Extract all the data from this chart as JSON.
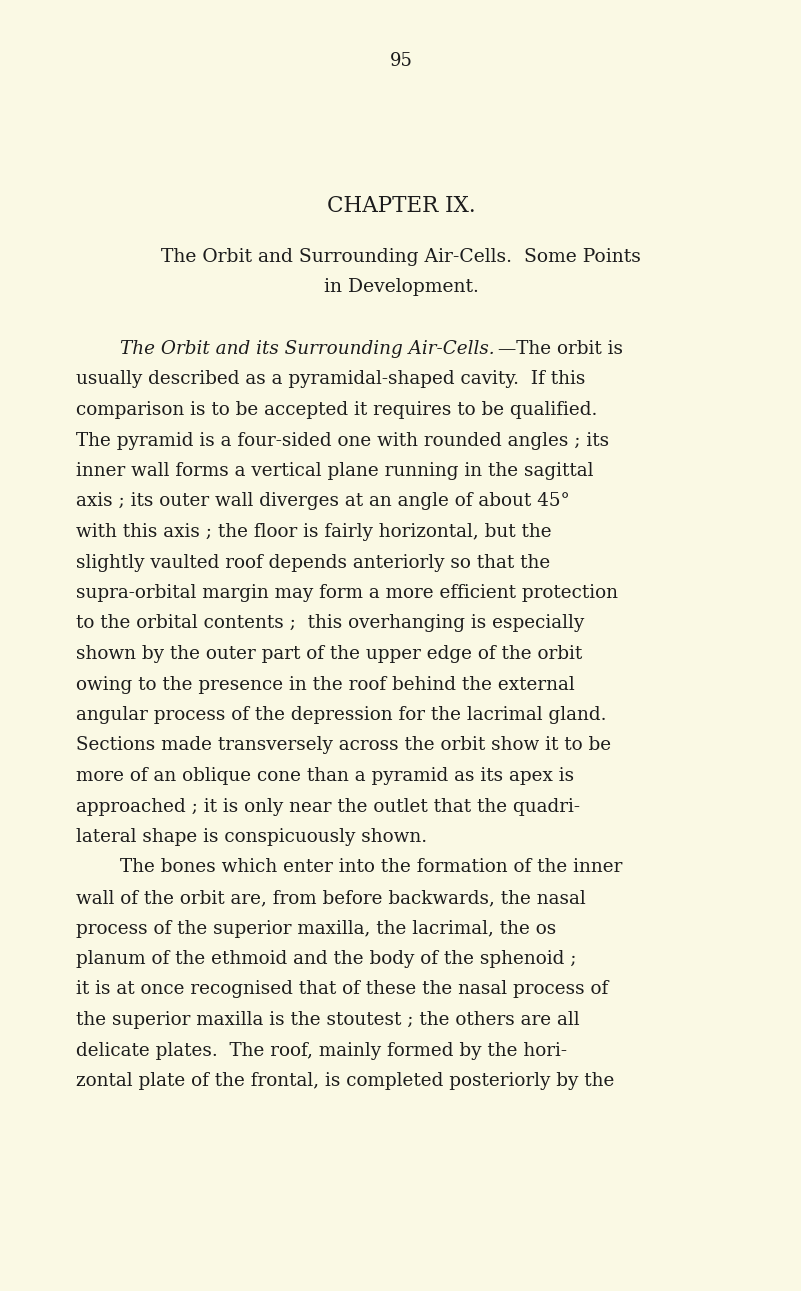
{
  "background_color": "#faf9e4",
  "page_number": "95",
  "text_color": "#1c1c1c",
  "chapter_title": "CHAPTER IX.",
  "subtitle_line1": "The Orbit and Surrounding Air-Cells.  Some Points",
  "subtitle_line2": "in Development.",
  "body_lines": [
    {
      "indent": true,
      "italic_prefix": "The Orbit and its Surrounding Air-Cells.",
      "normal_suffix": "—The orbit is"
    },
    {
      "indent": false,
      "text": "usually described as a pyramidal-shaped cavity.  If this"
    },
    {
      "indent": false,
      "text": "comparison is to be accepted it requires to be qualified."
    },
    {
      "indent": false,
      "text": "The pyramid is a four-sided one with rounded angles ; its"
    },
    {
      "indent": false,
      "text": "inner wall forms a vertical plane running in the sagittal"
    },
    {
      "indent": false,
      "text": "axis ; its outer wall diverges at an angle of about 45°"
    },
    {
      "indent": false,
      "text": "with this axis ; the floor is fairly horizontal, but the"
    },
    {
      "indent": false,
      "text": "slightly vaulted roof depends anteriorly so that the"
    },
    {
      "indent": false,
      "text": "supra-orbital margin may form a more efficient protection"
    },
    {
      "indent": false,
      "text": "to the orbital contents ;  this overhanging is especially"
    },
    {
      "indent": false,
      "text": "shown by the outer part of the upper edge of the orbit"
    },
    {
      "indent": false,
      "text": "owing to the presence in the roof behind the external"
    },
    {
      "indent": false,
      "text": "angular process of the depression for the lacrimal gland."
    },
    {
      "indent": false,
      "text": "Sections made transversely across the orbit show it to be"
    },
    {
      "indent": false,
      "text": "more of an oblique cone than a pyramid as its apex is"
    },
    {
      "indent": false,
      "text": "approached ; it is only near the outlet that the quadri-"
    },
    {
      "indent": false,
      "text": "lateral shape is conspicuously shown."
    },
    {
      "indent": true,
      "text": "The bones which enter into the formation of the inner"
    },
    {
      "indent": false,
      "text": "wall of the orbit are, from before backwards, the nasal"
    },
    {
      "indent": false,
      "text": "process of the superior maxilla, the lacrimal, the os"
    },
    {
      "indent": false,
      "text": "planum of the ethmoid and the body of the sphenoid ;"
    },
    {
      "indent": false,
      "text": "it is at once recognised that of these the nasal process of"
    },
    {
      "indent": false,
      "text": "the superior maxilla is the stoutest ; the others are all"
    },
    {
      "indent": false,
      "text": "delicate plates.  The roof, mainly formed by the hori-"
    },
    {
      "indent": false,
      "text": "zontal plate of the frontal, is completed posteriorly by the"
    }
  ]
}
